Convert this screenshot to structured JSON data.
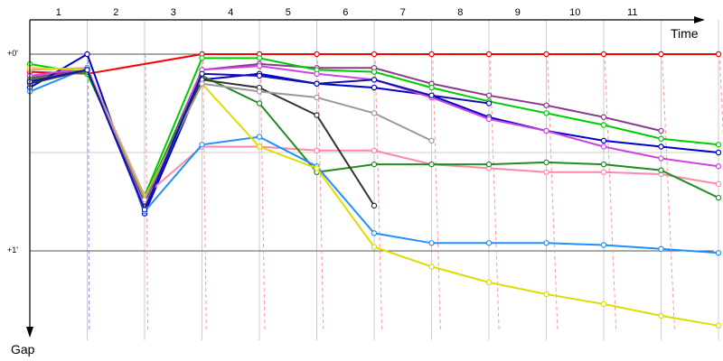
{
  "chart_data": {
    "type": "line",
    "title": "",
    "x_axis_label": "Time",
    "y_axis_label": "Gap",
    "x_ticks": [
      "1",
      "2",
      "3",
      "4",
      "5",
      "6",
      "7",
      "8",
      "9",
      "10",
      "11"
    ],
    "y_ticks": [
      "+0'",
      "+1'"
    ],
    "y_range_minutes": [
      -0.18,
      1.5
    ],
    "x_range": [
      0.5,
      12.6
    ],
    "series": [
      {
        "color": "#ff0000",
        "points": [
          [
            0.5,
            0.09
          ],
          [
            1.5,
            0.1
          ],
          [
            3.5,
            0.0
          ],
          [
            4.5,
            0.0
          ],
          [
            5.5,
            0.0
          ],
          [
            6.5,
            0.0
          ],
          [
            7.5,
            0.0
          ],
          [
            8.5,
            0.0
          ],
          [
            9.5,
            0.0
          ],
          [
            10.5,
            0.0
          ],
          [
            11.5,
            0.0
          ],
          [
            12.5,
            0.0
          ]
        ]
      },
      {
        "color": "#8b3a8b",
        "points": [
          [
            0.5,
            0.12
          ],
          [
            1.5,
            0.08
          ],
          [
            2.5,
            0.75
          ],
          [
            3.5,
            0.08
          ],
          [
            4.5,
            0.05
          ],
          [
            5.5,
            0.07
          ],
          [
            6.5,
            0.07
          ],
          [
            7.5,
            0.15
          ],
          [
            8.5,
            0.21
          ],
          [
            9.5,
            0.26
          ],
          [
            10.5,
            0.32
          ],
          [
            11.5,
            0.39
          ]
        ]
      },
      {
        "color": "#00cc00",
        "points": [
          [
            0.5,
            0.05
          ],
          [
            1.5,
            0.1
          ],
          [
            2.5,
            0.72
          ],
          [
            3.5,
            0.02
          ],
          [
            4.5,
            0.02
          ],
          [
            5.5,
            0.08
          ],
          [
            6.5,
            0.09
          ],
          [
            7.5,
            0.17
          ],
          [
            8.5,
            0.24
          ],
          [
            9.5,
            0.3
          ],
          [
            10.5,
            0.36
          ],
          [
            11.5,
            0.43
          ],
          [
            12.5,
            0.46
          ]
        ]
      },
      {
        "color": "#0000cc",
        "points": [
          [
            0.5,
            0.17
          ],
          [
            1.5,
            0.0
          ],
          [
            2.5,
            0.81
          ],
          [
            3.5,
            0.13
          ],
          [
            4.5,
            0.1
          ],
          [
            5.5,
            0.15
          ],
          [
            6.5,
            0.17
          ],
          [
            7.5,
            0.21
          ],
          [
            8.5,
            0.32
          ],
          [
            9.5,
            0.39
          ],
          [
            10.5,
            0.44
          ],
          [
            11.5,
            0.47
          ],
          [
            12.5,
            0.5
          ]
        ]
      },
      {
        "color": "#cc44dd",
        "points": [
          [
            0.5,
            0.11
          ],
          [
            1.5,
            0.07
          ],
          [
            2.5,
            0.78
          ],
          [
            3.5,
            0.08
          ],
          [
            4.5,
            0.06
          ],
          [
            5.5,
            0.1
          ],
          [
            6.5,
            0.13
          ],
          [
            7.5,
            0.22
          ],
          [
            8.5,
            0.33
          ],
          [
            9.5,
            0.39
          ],
          [
            10.5,
            0.47
          ],
          [
            11.5,
            0.53
          ],
          [
            12.5,
            0.57
          ]
        ]
      },
      {
        "color": "#ff88aa",
        "points": [
          [
            0.5,
            0.08
          ],
          [
            1.5,
            0.07
          ],
          [
            2.5,
            0.72
          ],
          [
            3.5,
            0.47
          ],
          [
            4.5,
            0.47
          ],
          [
            5.5,
            0.49
          ],
          [
            6.5,
            0.49
          ],
          [
            7.5,
            0.56
          ],
          [
            8.5,
            0.58
          ],
          [
            9.5,
            0.6
          ],
          [
            10.5,
            0.6
          ],
          [
            11.5,
            0.61
          ],
          [
            12.5,
            0.66
          ]
        ]
      },
      {
        "color": "#228b22",
        "points": [
          [
            0.5,
            0.13
          ],
          [
            1.5,
            0.09
          ],
          [
            2.5,
            0.73
          ],
          [
            3.5,
            0.11
          ],
          [
            4.5,
            0.25
          ],
          [
            5.5,
            0.6
          ],
          [
            6.5,
            0.56
          ],
          [
            7.5,
            0.56
          ],
          [
            8.5,
            0.56
          ],
          [
            9.5,
            0.55
          ],
          [
            10.5,
            0.56
          ],
          [
            11.5,
            0.59
          ],
          [
            12.5,
            0.73
          ]
        ]
      },
      {
        "color": "#1e90ff",
        "points": [
          [
            0.5,
            0.19
          ],
          [
            1.5,
            0.07
          ],
          [
            2.5,
            0.8
          ],
          [
            3.5,
            0.46
          ],
          [
            4.5,
            0.42
          ],
          [
            5.5,
            0.57
          ],
          [
            6.5,
            0.91
          ],
          [
            7.5,
            0.96
          ],
          [
            8.5,
            0.96
          ],
          [
            9.5,
            0.96
          ],
          [
            10.5,
            0.97
          ],
          [
            11.5,
            0.99
          ],
          [
            12.5,
            1.01
          ]
        ]
      },
      {
        "color": "#dddd00",
        "points": [
          [
            0.5,
            0.07
          ],
          [
            1.5,
            0.08
          ],
          [
            2.5,
            0.73
          ],
          [
            3.5,
            0.15
          ],
          [
            4.5,
            0.47
          ],
          [
            5.5,
            0.58
          ],
          [
            6.5,
            0.98
          ],
          [
            7.5,
            1.08
          ],
          [
            8.5,
            1.16
          ],
          [
            9.5,
            1.22
          ],
          [
            10.5,
            1.27
          ],
          [
            11.5,
            1.33
          ],
          [
            12.5,
            1.38
          ]
        ]
      },
      {
        "color": "#333333",
        "points": [
          [
            0.5,
            0.15
          ],
          [
            1.5,
            0.08
          ],
          [
            2.5,
            0.75
          ],
          [
            3.5,
            0.13
          ],
          [
            4.5,
            0.17
          ],
          [
            5.5,
            0.31
          ],
          [
            6.5,
            0.77
          ]
        ]
      },
      {
        "color": "#999999",
        "points": [
          [
            0.5,
            0.14
          ],
          [
            1.5,
            0.08
          ],
          [
            2.5,
            0.74
          ],
          [
            3.5,
            0.15
          ],
          [
            4.5,
            0.19
          ],
          [
            5.5,
            0.22
          ],
          [
            6.5,
            0.3
          ],
          [
            7.5,
            0.44
          ]
        ]
      },
      {
        "color": "#1111aa",
        "points": [
          [
            0.5,
            0.14
          ],
          [
            1.5,
            0.08
          ],
          [
            2.5,
            0.79
          ],
          [
            3.5,
            0.1
          ],
          [
            4.5,
            0.11
          ],
          [
            5.5,
            0.15
          ],
          [
            6.5,
            0.13
          ],
          [
            7.5,
            0.21
          ],
          [
            8.5,
            0.25
          ]
        ]
      }
    ],
    "dashed_time_markers": true,
    "grid": true
  }
}
